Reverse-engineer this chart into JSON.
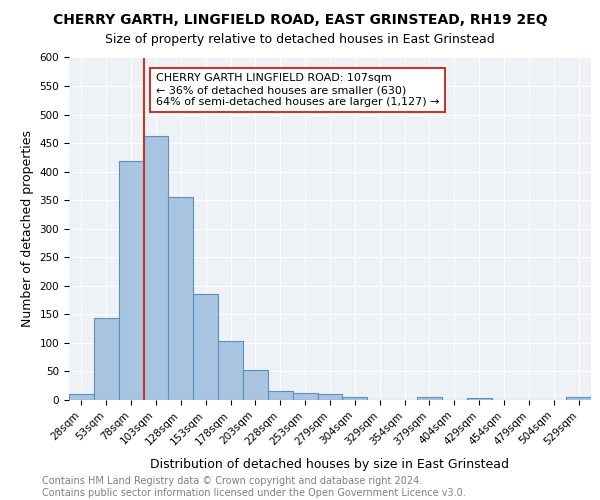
{
  "title": "CHERRY GARTH, LINGFIELD ROAD, EAST GRINSTEAD, RH19 2EQ",
  "subtitle": "Size of property relative to detached houses in East Grinstead",
  "xlabel": "Distribution of detached houses by size in East Grinstead",
  "ylabel": "Number of detached properties",
  "categories": [
    "28sqm",
    "53sqm",
    "78sqm",
    "103sqm",
    "128sqm",
    "153sqm",
    "178sqm",
    "203sqm",
    "228sqm",
    "253sqm",
    "279sqm",
    "304sqm",
    "329sqm",
    "354sqm",
    "379sqm",
    "404sqm",
    "429sqm",
    "454sqm",
    "479sqm",
    "504sqm",
    "529sqm"
  ],
  "values": [
    10,
    143,
    418,
    463,
    355,
    185,
    103,
    53,
    16,
    13,
    10,
    6,
    0,
    0,
    5,
    0,
    4,
    0,
    0,
    0,
    5
  ],
  "bar_color": "#a8c4e0",
  "bar_edge_color": "#5a8fc0",
  "vline_x": 2.5,
  "vline_color": "#c0392b",
  "annotation_text": "CHERRY GARTH LINGFIELD ROAD: 107sqm\n← 36% of detached houses are smaller (630)\n64% of semi-detached houses are larger (1,127) →",
  "annotation_box_color": "#ffffff",
  "annotation_box_edge_color": "#c0392b",
  "ylim": [
    0,
    600
  ],
  "yticks": [
    0,
    50,
    100,
    150,
    200,
    250,
    300,
    350,
    400,
    450,
    500,
    550,
    600
  ],
  "background_color": "#eef2f7",
  "footer_text": "Contains HM Land Registry data © Crown copyright and database right 2024.\nContains public sector information licensed under the Open Government Licence v3.0.",
  "title_fontsize": 10,
  "subtitle_fontsize": 9,
  "xlabel_fontsize": 9,
  "ylabel_fontsize": 9,
  "tick_fontsize": 7.5,
  "annotation_fontsize": 8,
  "footer_fontsize": 7
}
